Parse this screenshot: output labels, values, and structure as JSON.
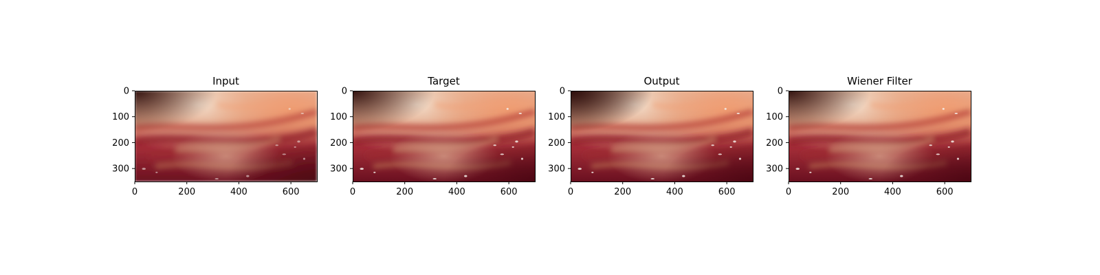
{
  "figure": {
    "panels": [
      {
        "title": "Input",
        "variant": "input"
      },
      {
        "title": "Target",
        "variant": "target"
      },
      {
        "title": "Output",
        "variant": "output"
      },
      {
        "title": "Wiener Filter",
        "variant": "wiener"
      }
    ],
    "x_ticks": [
      0,
      200,
      400,
      600
    ],
    "y_ticks": [
      0,
      100,
      200,
      300
    ],
    "x_range": [
      0,
      700
    ],
    "y_range": [
      0,
      350
    ],
    "image_description_colors": {
      "bright_tissue": "#e8b89a",
      "mid_tissue": "#c2564a",
      "dark_tissue": "#7a1320",
      "shadow": "#3a0a10"
    }
  }
}
